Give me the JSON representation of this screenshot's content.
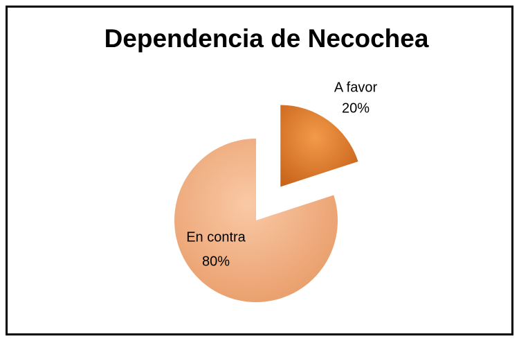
{
  "chart_data": {
    "type": "pie",
    "title": "Dependencia de Necochea",
    "categories": [
      "A favor",
      "En contra"
    ],
    "values": [
      20,
      80
    ],
    "value_labels": [
      "20%",
      "80%"
    ],
    "colors": [
      "#e07b28",
      "#f5b488"
    ]
  }
}
